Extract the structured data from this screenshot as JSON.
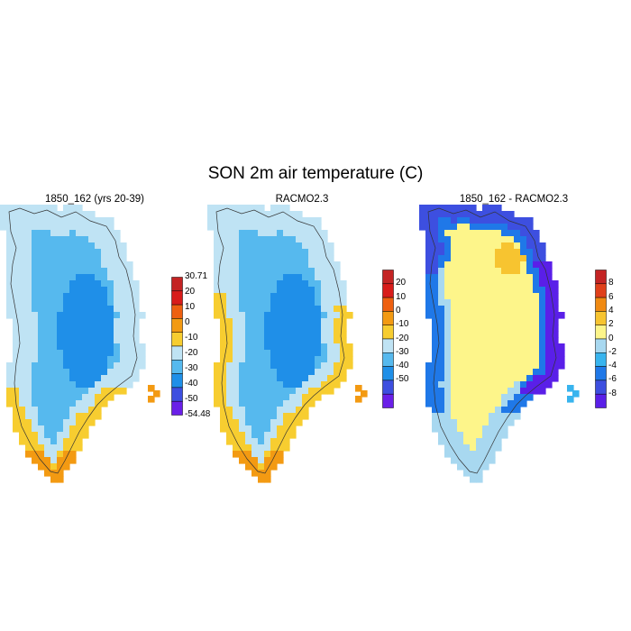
{
  "figure": {
    "title": "SON 2m air temperature (C)"
  },
  "panels": [
    {
      "title": "1850_162 (yrs 20-39)",
      "colorbar": {
        "colors": [
          "#6a1fe8",
          "#3d4fe0",
          "#1f8fe8",
          "#56b9ee",
          "#bfe3f4",
          "#f7cd30",
          "#f39a12",
          "#ee6010",
          "#d81c1a",
          "#c42424"
        ],
        "labels": [
          "30.71",
          "20",
          "10",
          "0",
          "-10",
          "-20",
          "-30",
          "-40",
          "-50",
          "-54.48"
        ]
      },
      "scheme": "absolute"
    },
    {
      "title": "RACMO2.3",
      "colorbar": {
        "colors": [
          "#6a1fe8",
          "#3d4fe0",
          "#1f8fe8",
          "#56b9ee",
          "#bfe3f4",
          "#f7cd30",
          "#f39a12",
          "#ee6010",
          "#d81c1a",
          "#c42424"
        ],
        "labels": [
          "20",
          "10",
          "0",
          "-10",
          "-20",
          "-30",
          "-40",
          "-50"
        ]
      },
      "scheme": "absolute"
    },
    {
      "title": "1850_162 - RACMO2.3",
      "colorbar": {
        "colors": [
          "#5a1fe8",
          "#3d4fe0",
          "#1f78e8",
          "#38b4ee",
          "#a8d8f0",
          "#fdf58a",
          "#f7c430",
          "#f08a12",
          "#e0401a",
          "#c42424"
        ],
        "labels": [
          "8",
          "6",
          "4",
          "2",
          "0",
          "-2",
          "-4",
          "-6",
          "-8"
        ]
      },
      "scheme": "difference"
    }
  ]
}
